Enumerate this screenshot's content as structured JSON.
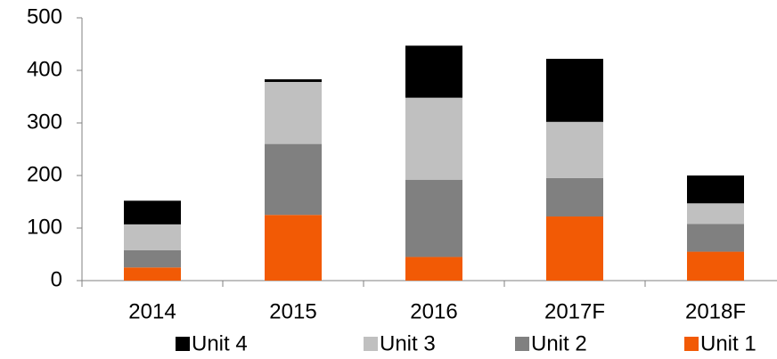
{
  "chart_data": {
    "type": "stacked-bar",
    "categories": [
      "2014",
      "2015",
      "2016",
      "2017F",
      "2018F"
    ],
    "series": [
      {
        "name": "Unit 1",
        "color": "#f25a05",
        "values": [
          25,
          125,
          45,
          122,
          55
        ]
      },
      {
        "name": "Unit 2",
        "color": "#808080",
        "values": [
          33,
          135,
          147,
          73,
          53
        ]
      },
      {
        "name": "Unit 3",
        "color": "#c0c0c0",
        "values": [
          49,
          118,
          156,
          107,
          39
        ]
      },
      {
        "name": "Unit 4",
        "color": "#000000",
        "values": [
          45,
          5,
          99,
          120,
          53
        ]
      }
    ],
    "ylim": [
      0,
      500
    ],
    "yticks": [
      0,
      100,
      200,
      300,
      400,
      500
    ],
    "grid": false,
    "legend": "bottom"
  }
}
